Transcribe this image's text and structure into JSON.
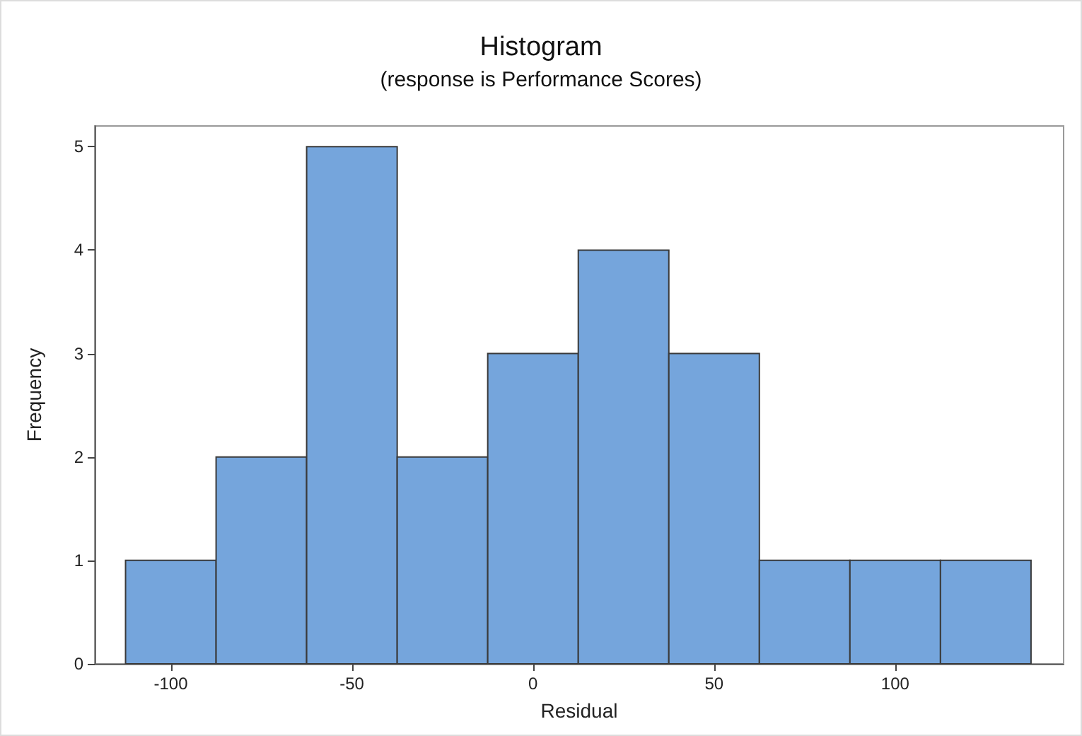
{
  "chart_data": {
    "type": "histogram",
    "title": "Histogram",
    "subtitle": "(response is Performance Scores)",
    "xlabel": "Residual",
    "ylabel": "Frequency",
    "bins": [
      -112.5,
      -87.5,
      -62.5,
      -37.5,
      -12.5,
      12.5,
      37.5,
      62.5,
      87.5,
      112.5,
      137.5
    ],
    "values": [
      1,
      2,
      5,
      2,
      3,
      4,
      3,
      1,
      1,
      1
    ],
    "color": "#75a5dc",
    "xlim": [
      -121,
      146.5
    ],
    "xticks": [
      -100,
      -50,
      0,
      50,
      100
    ],
    "ylim": [
      0,
      5.2
    ],
    "yticks": [
      0,
      1,
      2,
      3,
      4,
      5
    ]
  }
}
